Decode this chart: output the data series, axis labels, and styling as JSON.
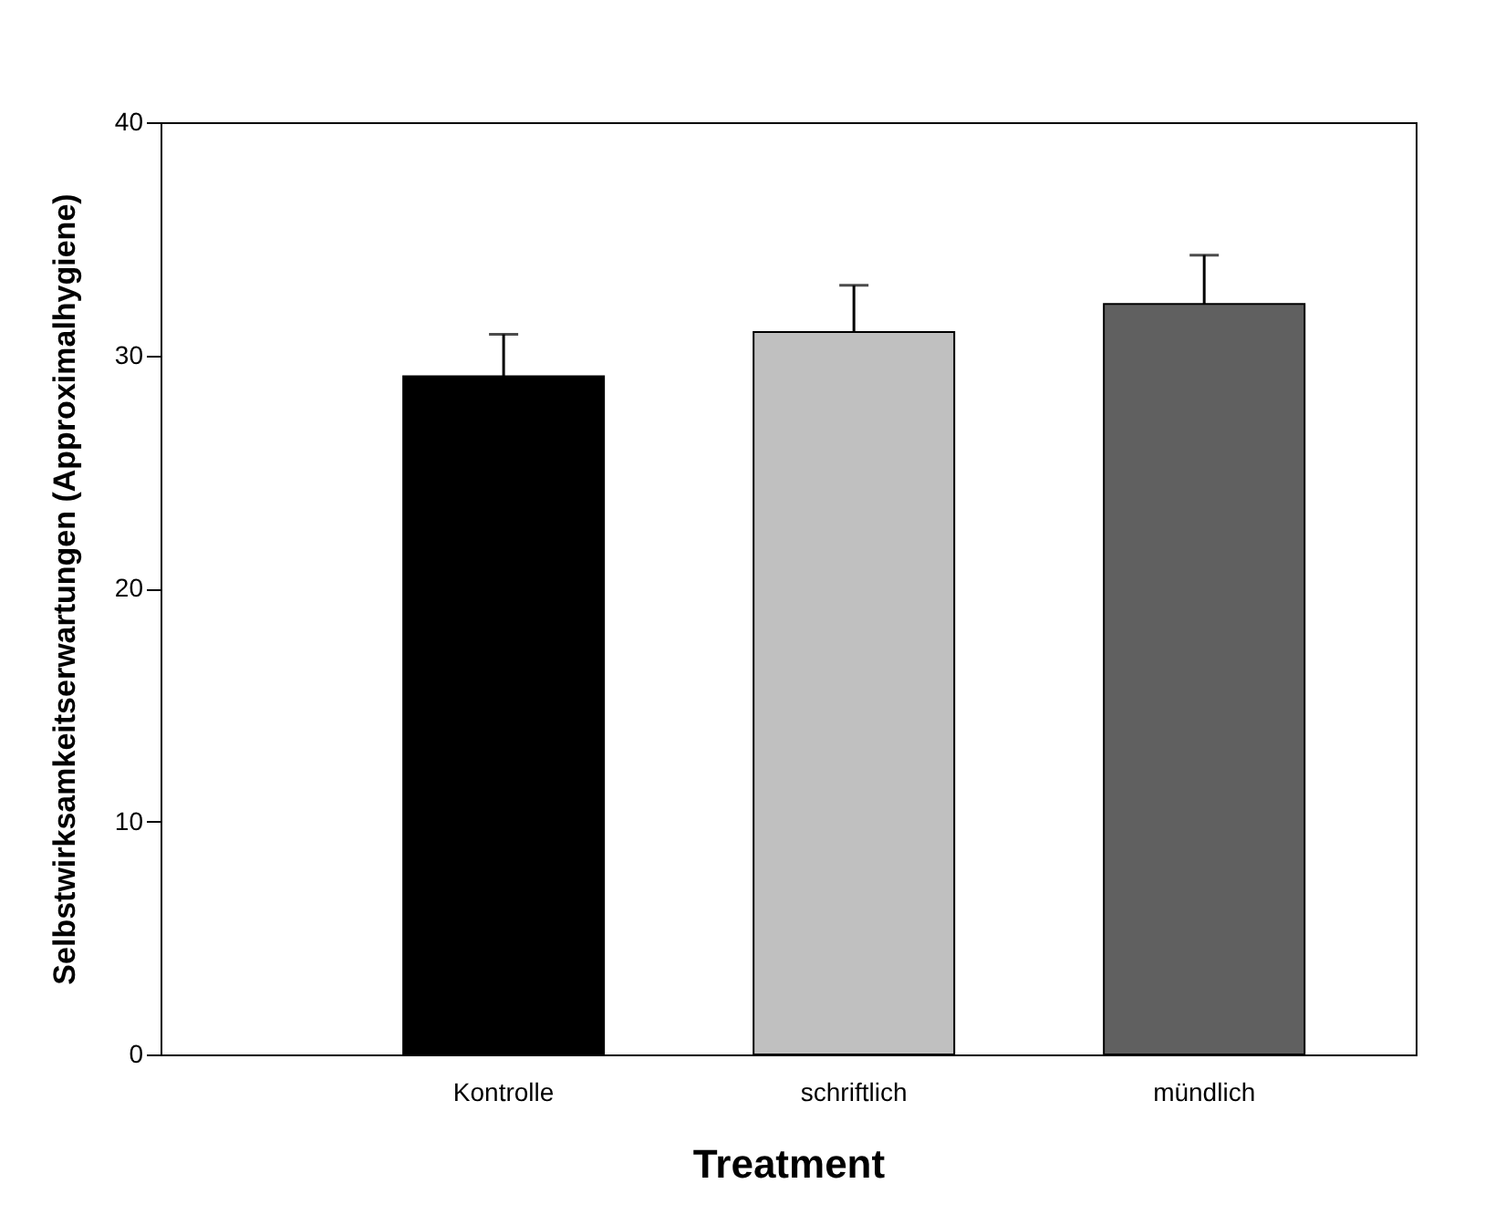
{
  "chart_data": {
    "type": "bar",
    "xlabel": "Treatment",
    "ylabel": "Selbstwirksamkeitserwartungen (Approximalhygiene)",
    "categories": [
      "Kontrolle",
      "schriftlich",
      "mündlich"
    ],
    "values": [
      29.1,
      31.0,
      32.2
    ],
    "colors": [
      "#000000",
      "#c0c0c0",
      "#606060"
    ],
    "errors": [
      [
        29.1,
        30.9
      ],
      [
        31.0,
        33.0
      ],
      [
        32.2,
        34.3
      ]
    ],
    "ylim": [
      0,
      40
    ],
    "yticks": [
      0,
      10,
      20,
      30,
      40
    ],
    "grid": false
  }
}
